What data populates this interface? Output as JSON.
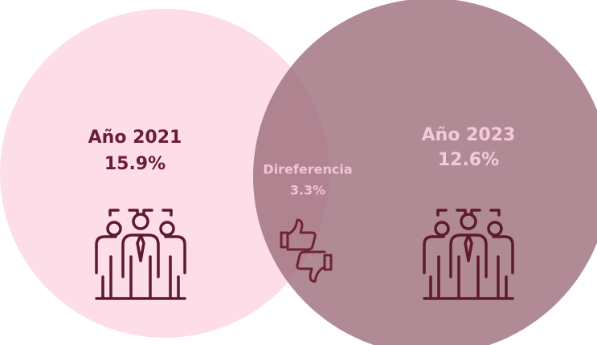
{
  "left": {
    "label": "Año 2021",
    "value": "15.9%"
  },
  "right": {
    "label": "Año 2023",
    "value": "12.6%"
  },
  "middle": {
    "label": "Direferencia",
    "value": "3.3%"
  }
}
